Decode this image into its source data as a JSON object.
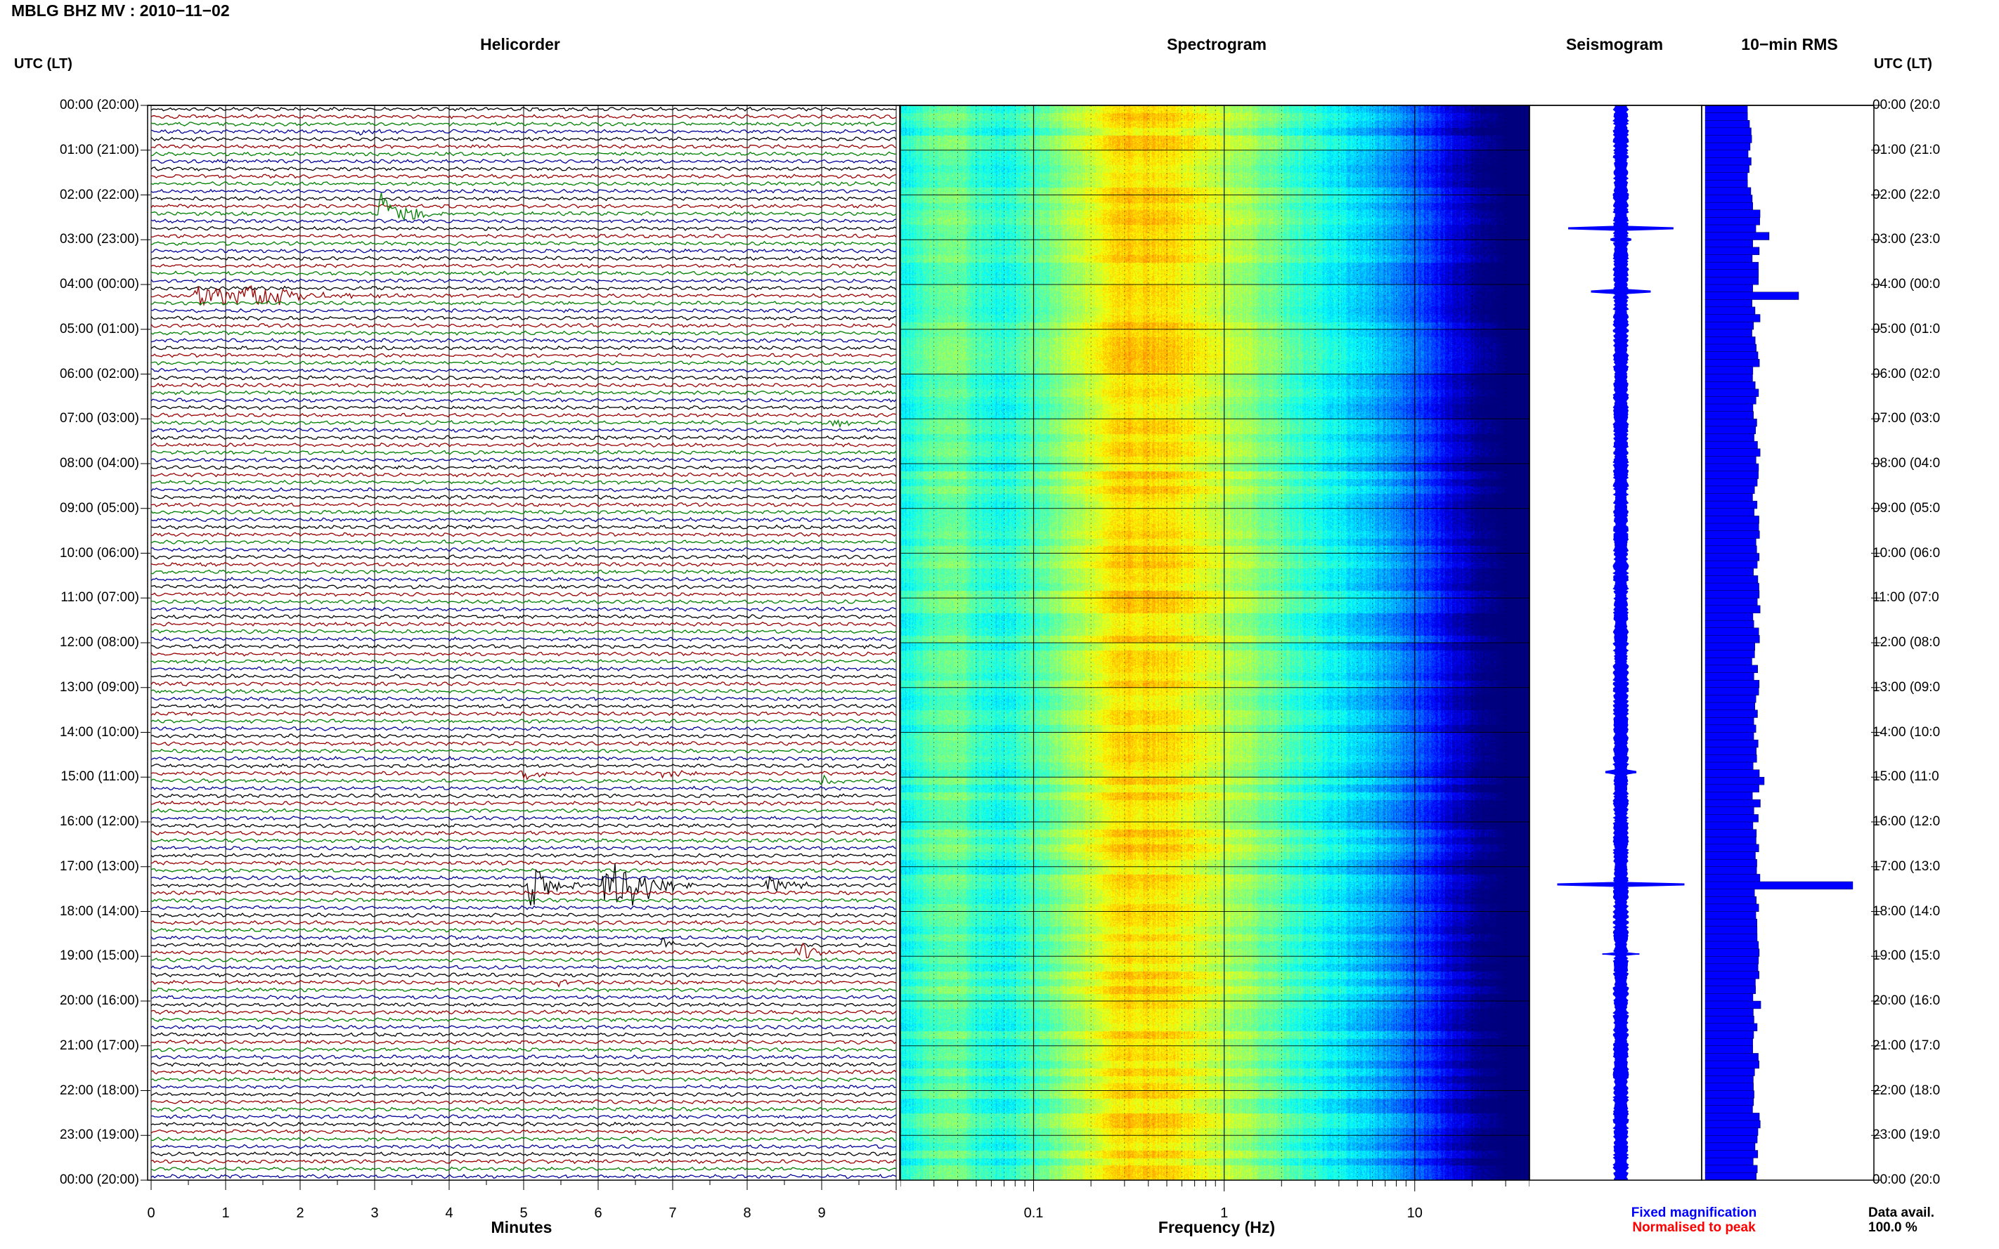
{
  "header": {
    "title": "MBLG BHZ MV : 2010−11−02",
    "left_axis_label": "UTC (LT)",
    "right_axis_label": "UTC (LT)"
  },
  "panels": {
    "helicorder": "Helicorder",
    "spectrogram": "Spectrogram",
    "seismogram": "Seismogram",
    "rms": "10−min RMS"
  },
  "legend": {
    "fixed": "Fixed magnification",
    "normalised": "Normalised to peak",
    "fixed_color": "#0000ff",
    "normalised_color": "#ff0000"
  },
  "availability": {
    "label": "Data avail.",
    "value": "100.0 %"
  },
  "colors": {
    "trace_cycle": [
      "#000000",
      "#990000",
      "#008000",
      "#000099"
    ],
    "rms_fill": "#0000ff",
    "seismogram_fill": "#0000ff"
  },
  "chart_data": [
    {
      "type": "helicorder",
      "title": "Helicorder",
      "xlabel": "Minutes",
      "x_ticks": [
        "0",
        "1",
        "2",
        "3",
        "4",
        "5",
        "6",
        "7",
        "8",
        "9"
      ],
      "xlim": [
        0,
        10
      ],
      "y_tick_labels": [
        "00:00 (20:00)",
        "01:00 (21:00)",
        "02:00 (22:00)",
        "03:00 (23:00)",
        "04:00 (00:00)",
        "05:00 (01:00)",
        "06:00 (02:00)",
        "07:00 (03:00)",
        "08:00 (04:00)",
        "09:00 (05:00)",
        "10:00 (06:00)",
        "11:00 (07:00)",
        "12:00 (08:00)",
        "13:00 (09:00)",
        "14:00 (10:00)",
        "15:00 (11:00)",
        "16:00 (12:00)",
        "17:00 (13:00)",
        "18:00 (14:00)",
        "19:00 (15:00)",
        "20:00 (16:00)",
        "21:00 (17:00)",
        "22:00 (18:00)",
        "23:00 (19:00)",
        "00:00 (20:00)"
      ],
      "right_tick_labels": [
        "00:00 (20:0",
        "01:00 (21:0",
        "02:00 (22:0",
        "03:00 (23:0",
        "04:00 (00:0",
        "05:00 (01:0",
        "06:00 (02:0",
        "07:00 (03:0",
        "08:00 (04:0",
        "09:00 (05:0",
        "10:00 (06:0",
        "11:00 (07:0",
        "12:00 (08:0",
        "13:00 (09:0",
        "14:00 (10:0",
        "15:00 (11:0",
        "16:00 (12:0",
        "17:00 (13:0",
        "18:00 (14:0",
        "19:00 (15:0",
        "20:00 (16:0",
        "21:00 (17:0",
        "22:00 (18:0",
        "23:00 (19:0",
        "00:00 (20:0"
      ],
      "lines": 144,
      "minutes_per_line": 10,
      "events": [
        {
          "line": 3,
          "minute": 2.8,
          "amplitude": 0.4,
          "duration": 0.5
        },
        {
          "line": 14,
          "minute": 3.1,
          "amplitude": 2.2,
          "duration": 0.9
        },
        {
          "line": 17,
          "minute": 0.9,
          "amplitude": 0.3,
          "duration": 0.3
        },
        {
          "line": 25,
          "minute": 0.6,
          "amplitude": 1.2,
          "duration": 2.5
        },
        {
          "line": 25,
          "minute": 1.3,
          "amplitude": 1.4,
          "duration": 1.5
        },
        {
          "line": 42,
          "minute": 9.2,
          "amplitude": 0.6,
          "duration": 0.6
        },
        {
          "line": 89,
          "minute": 5.0,
          "amplitude": 0.8,
          "duration": 0.6
        },
        {
          "line": 89,
          "minute": 6.9,
          "amplitude": 0.6,
          "duration": 0.6
        },
        {
          "line": 90,
          "minute": 9.0,
          "amplitude": 0.6,
          "duration": 0.6
        },
        {
          "line": 104,
          "minute": 5.1,
          "amplitude": 2.2,
          "duration": 0.8
        },
        {
          "line": 104,
          "minute": 6.1,
          "amplitude": 3.0,
          "duration": 1.2
        },
        {
          "line": 104,
          "minute": 6.5,
          "amplitude": 1.8,
          "duration": 0.8
        },
        {
          "line": 104,
          "minute": 8.3,
          "amplitude": 0.8,
          "duration": 0.9
        },
        {
          "line": 112,
          "minute": 6.9,
          "amplitude": 0.6,
          "duration": 0.6
        },
        {
          "line": 113,
          "minute": 8.7,
          "amplitude": 1.2,
          "duration": 0.6
        },
        {
          "line": 117,
          "minute": 5.5,
          "amplitude": 0.4,
          "duration": 0.6
        }
      ]
    },
    {
      "type": "heatmap",
      "title": "Spectrogram",
      "xlabel": "Frequency (Hz)",
      "x_scale": "log",
      "xlim": [
        0.02,
        40
      ],
      "x_ticks": [
        "0.1",
        "1",
        "10"
      ],
      "colormap": "jet"
    },
    {
      "type": "area",
      "title": "Seismogram",
      "peaks": [
        {
          "hour": 2.75,
          "amplitude": 0.62
        },
        {
          "hour": 3.0,
          "amplitude": 0.12
        },
        {
          "hour": 4.15,
          "amplitude": 0.35
        },
        {
          "hour": 14.9,
          "amplitude": 0.18
        },
        {
          "hour": 17.4,
          "amplitude": 0.75
        },
        {
          "hour": 18.95,
          "amplitude": 0.22
        }
      ]
    },
    {
      "type": "bar",
      "title": "10−min RMS",
      "bins": 144,
      "peaks": [
        {
          "line": 17,
          "value": 1.3
        },
        {
          "line": 25,
          "value": 1.9
        },
        {
          "line": 42,
          "value": 1.05
        },
        {
          "line": 90,
          "value": 1.2
        },
        {
          "line": 104,
          "value": 3.0
        },
        {
          "line": 113,
          "value": 1.1
        }
      ]
    }
  ]
}
